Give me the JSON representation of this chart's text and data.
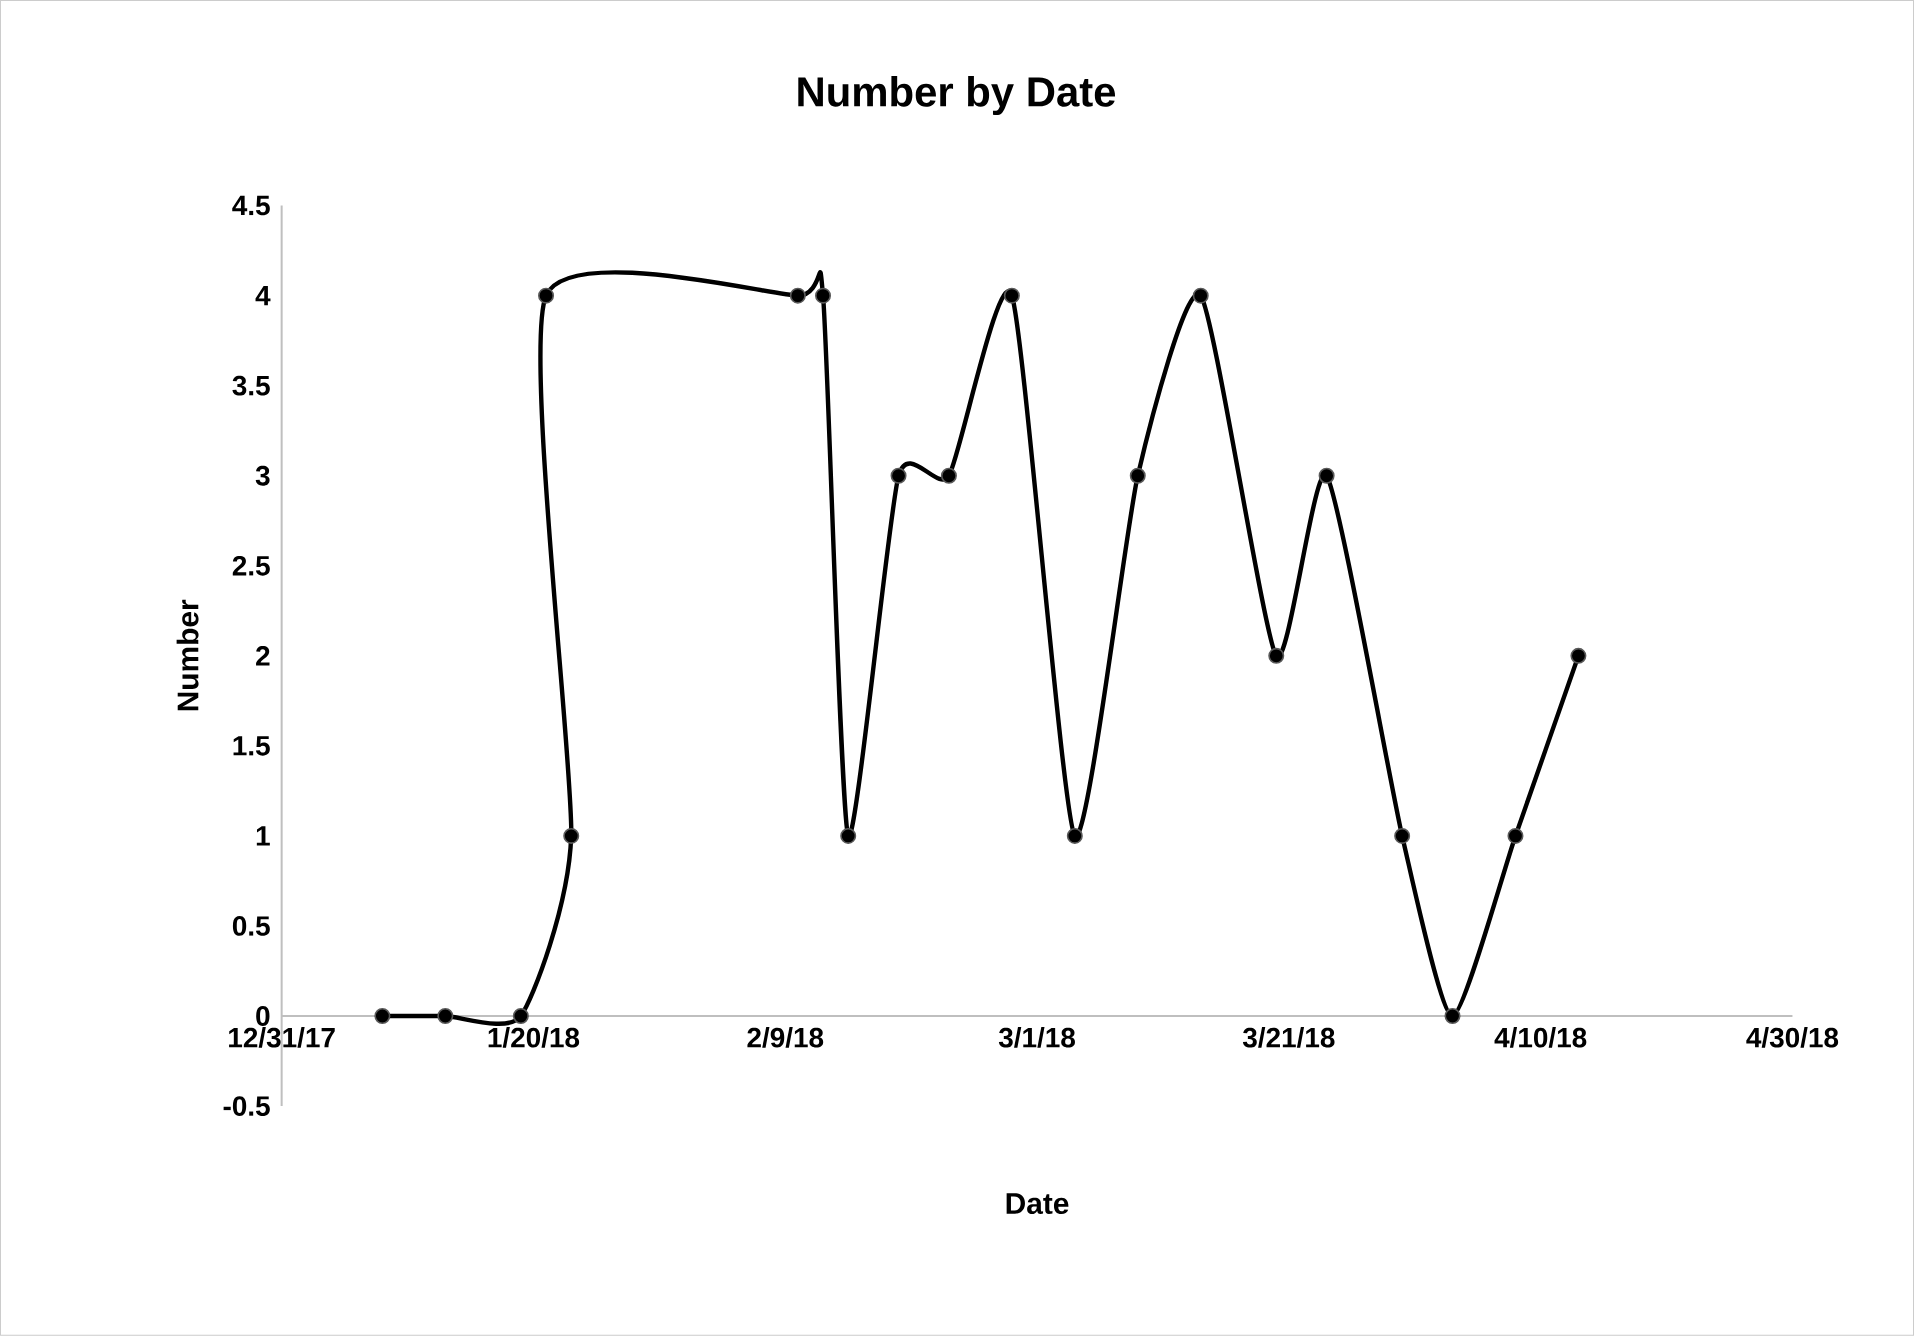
{
  "chart_data": {
    "type": "line",
    "title": "Number by Date",
    "xlabel": "Date",
    "ylabel": "Number",
    "x": [
      "2018-01-08",
      "2018-01-13",
      "2018-01-19",
      "2018-01-23",
      "2018-01-21",
      "2018-02-10",
      "2018-02-12",
      "2018-02-14",
      "2018-02-18",
      "2018-02-22",
      "2018-02-27",
      "2018-03-04",
      "2018-03-09",
      "2018-03-14",
      "2018-03-20",
      "2018-03-24",
      "2018-03-30",
      "2018-04-03",
      "2018-04-08",
      "2018-04-13"
    ],
    "series": [
      {
        "color": "#000000",
        "values": [
          0,
          0,
          0,
          1,
          4,
          4,
          4,
          1,
          3,
          3,
          4,
          1,
          3,
          4,
          2,
          3,
          1,
          0,
          1,
          2
        ]
      }
    ],
    "xlim": [
      "2017-12-31",
      "2018-04-30"
    ],
    "xticks": [
      {
        "value": "2017-12-31",
        "label": "12/31/17"
      },
      {
        "value": "2018-01-20",
        "label": "1/20/18"
      },
      {
        "value": "2018-02-09",
        "label": "2/9/18"
      },
      {
        "value": "2018-03-01",
        "label": "3/1/18"
      },
      {
        "value": "2018-03-21",
        "label": "3/21/18"
      },
      {
        "value": "2018-04-10",
        "label": "4/10/18"
      },
      {
        "value": "2018-04-30",
        "label": "4/30/18"
      }
    ],
    "ylim": [
      -0.5,
      4.5
    ],
    "yticks": [
      -0.5,
      0,
      0.5,
      1,
      1.5,
      2,
      2.5,
      3,
      3.5,
      4,
      4.5
    ],
    "grid": false,
    "legend": false,
    "marker": "circle",
    "line_style": "solid"
  }
}
